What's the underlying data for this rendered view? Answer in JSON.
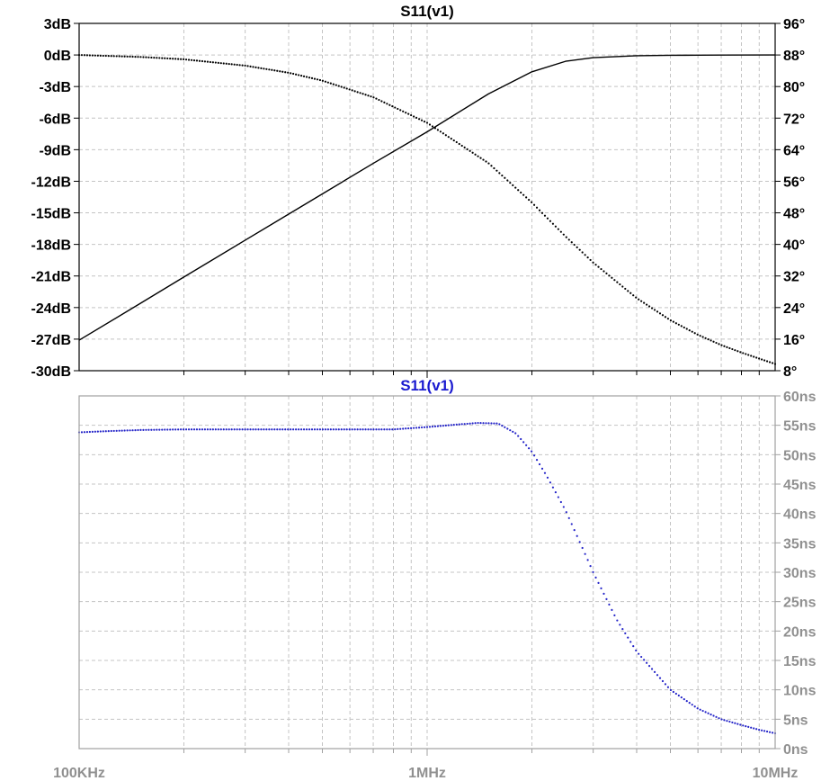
{
  "chart_data": [
    {
      "type": "line",
      "title": "S11(v1)",
      "title_color": "#000000",
      "x_scale": "log",
      "xlim_hz": [
        100000,
        10000000
      ],
      "x_ticks": [],
      "left_axis": {
        "ylim": [
          -30,
          3
        ],
        "ticks": [
          "3dB",
          "0dB",
          "-3dB",
          "-6dB",
          "-9dB",
          "-12dB",
          "-15dB",
          "-18dB",
          "-21dB",
          "-24dB",
          "-27dB",
          "-30dB"
        ],
        "tick_values": [
          3,
          0,
          -3,
          -6,
          -9,
          -12,
          -15,
          -18,
          -21,
          -24,
          -27,
          -30
        ]
      },
      "right_axis": {
        "ylim": [
          8,
          96
        ],
        "ticks": [
          "96°",
          "88°",
          "80°",
          "72°",
          "64°",
          "56°",
          "48°",
          "40°",
          "32°",
          "24°",
          "16°",
          "8°"
        ],
        "tick_values": [
          96,
          88,
          80,
          72,
          64,
          56,
          48,
          40,
          32,
          24,
          16,
          8
        ]
      },
      "grid": true,
      "series": [
        {
          "axis": "left",
          "style": "solid",
          "color": "#000000",
          "x_hz": [
            100000,
            150000,
            200000,
            300000,
            500000,
            700000,
            1000000,
            1500000,
            2000000,
            2500000,
            3000000,
            4000000,
            5000000,
            6000000,
            7000000,
            10000000
          ],
          "values": [
            -27.1,
            -23.6,
            -21.1,
            -17.6,
            -13.2,
            -10.3,
            -7.3,
            -3.7,
            -1.6,
            -0.6,
            -0.25,
            -0.07,
            -0.03,
            -0.02,
            -0.01,
            0
          ]
        },
        {
          "axis": "right",
          "style": "dotted",
          "color": "#000000",
          "x_hz": [
            100000,
            150000,
            200000,
            300000,
            400000,
            500000,
            700000,
            1000000,
            1500000,
            2000000,
            2500000,
            3000000,
            4000000,
            5000000,
            6000000,
            7000000,
            8000000,
            10000000
          ],
          "values": [
            88,
            87.5,
            86.9,
            85.3,
            83.5,
            81.5,
            77.3,
            70.8,
            60.6,
            50.6,
            42,
            35.4,
            26.4,
            20.8,
            17.1,
            14.5,
            12.6,
            9.7
          ]
        }
      ]
    },
    {
      "type": "line",
      "title": "S11(v1)",
      "title_color": "#1a1ad0",
      "x_scale": "log",
      "xlim_hz": [
        100000,
        10000000
      ],
      "x_ticks": [
        "100KHz",
        "1MHz",
        "10MHz"
      ],
      "x_tick_values": [
        100000,
        1000000,
        10000000
      ],
      "right_axis": {
        "ylim": [
          0,
          60
        ],
        "ticks": [
          "60ns",
          "55ns",
          "50ns",
          "45ns",
          "40ns",
          "35ns",
          "30ns",
          "25ns",
          "20ns",
          "15ns",
          "10ns",
          "5ns",
          "0ns"
        ],
        "tick_values": [
          60,
          55,
          50,
          45,
          40,
          35,
          30,
          25,
          20,
          15,
          10,
          5,
          0
        ]
      },
      "grid": true,
      "series": [
        {
          "axis": "right",
          "style": "dotted",
          "color": "#2323c8",
          "x_hz": [
            100000,
            120000,
            150000,
            200000,
            500000,
            800000,
            1000000,
            1200000,
            1400000,
            1600000,
            1800000,
            2000000,
            2200000,
            2500000,
            2800000,
            3000000,
            3500000,
            4000000,
            5000000,
            6000000,
            7000000,
            8000000,
            9000000,
            10000000
          ],
          "values": [
            53.8,
            54,
            54.2,
            54.3,
            54.3,
            54.3,
            54.7,
            55.1,
            55.4,
            55.3,
            53.6,
            50.5,
            46.5,
            40.5,
            34,
            30,
            22,
            16.5,
            10,
            6.8,
            5,
            4,
            3.2,
            2.6
          ]
        }
      ]
    }
  ],
  "colors": {
    "axis_text_dark": "#000000",
    "axis_text_grey": "#909090",
    "frame_top": "#000000",
    "frame_bottom": "#a0a0a0",
    "grid": "#c4c4c4"
  }
}
